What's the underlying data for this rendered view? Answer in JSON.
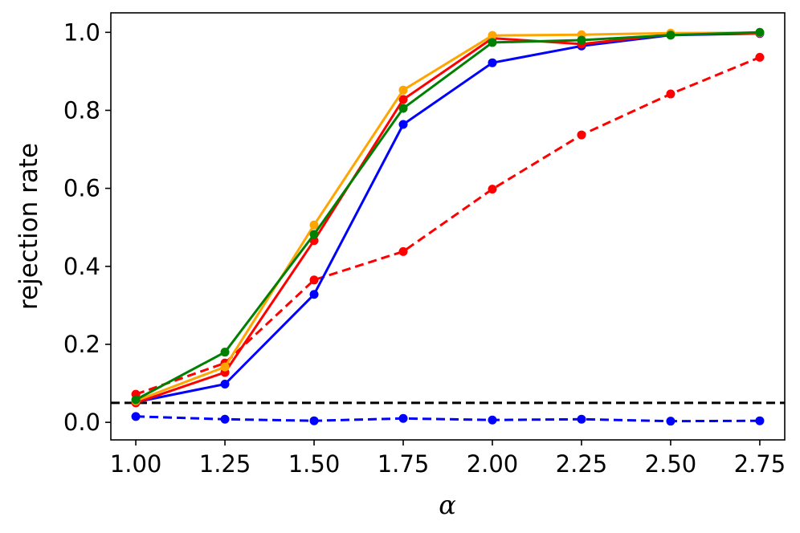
{
  "chart_data": {
    "type": "line",
    "xlabel": "α",
    "ylabel": "rejection rate",
    "xlim": [
      0.93,
      2.82
    ],
    "ylim": [
      -0.045,
      1.05
    ],
    "x": [
      1.0,
      1.25,
      1.5,
      1.75,
      2.0,
      2.25,
      2.5,
      2.75
    ],
    "xticks": [
      "1.00",
      "1.25",
      "1.50",
      "1.75",
      "2.00",
      "2.25",
      "2.50",
      "2.75"
    ],
    "yticks": [
      "0.0",
      "0.2",
      "0.4",
      "0.6",
      "0.8",
      "1.0"
    ],
    "reference_line": {
      "y": 0.05,
      "color": "#000000",
      "style": "dashed"
    },
    "legend": "none",
    "grid": false,
    "series": [
      {
        "color": "#ff0000",
        "style": "dashed",
        "values": [
          0.072,
          0.152,
          0.365,
          0.438,
          0.598,
          0.737,
          0.842,
          0.936
        ]
      },
      {
        "color": "#0000ff",
        "style": "dashed",
        "values": [
          0.015,
          0.008,
          0.004,
          0.01,
          0.006,
          0.008,
          0.003,
          0.004
        ]
      },
      {
        "color": "#0000ff",
        "style": "solid",
        "values": [
          0.052,
          0.098,
          0.328,
          0.764,
          0.922,
          0.965,
          0.993,
          0.997
        ]
      },
      {
        "color": "#ff0000",
        "style": "solid",
        "values": [
          0.05,
          0.128,
          0.466,
          0.828,
          0.985,
          0.97,
          0.995,
          0.998
        ]
      },
      {
        "color": "#ffa500",
        "style": "solid",
        "values": [
          0.055,
          0.142,
          0.506,
          0.852,
          0.992,
          0.994,
          0.998,
          0.999
        ]
      },
      {
        "color": "#008000",
        "style": "solid",
        "values": [
          0.058,
          0.18,
          0.482,
          0.805,
          0.974,
          0.98,
          0.993,
          1.0
        ]
      }
    ]
  }
}
